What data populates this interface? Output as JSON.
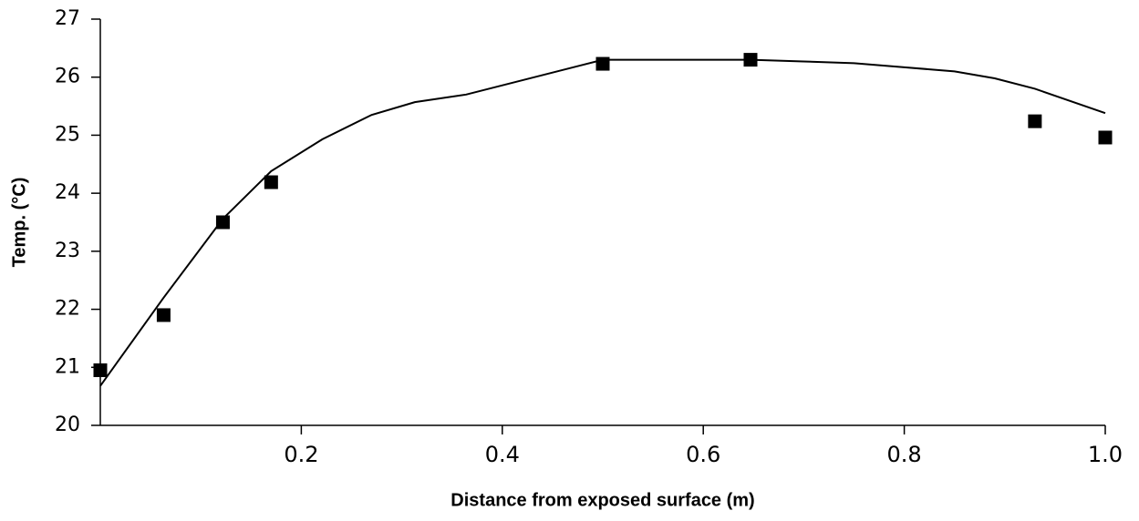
{
  "chart_data": {
    "type": "scatter",
    "x_label": "Distance from exposed surface (m)",
    "y_label": "Temp. (°C)",
    "xlim": [
      0,
      1
    ],
    "ylim": [
      20,
      27
    ],
    "xticks": [
      0.2,
      0.4,
      0.6,
      0.8,
      {
        "value": 1,
        "label": "1.0"
      }
    ],
    "yticks": [
      20,
      21,
      22,
      23,
      24,
      25,
      26,
      27
    ],
    "grid": false,
    "series": [
      {
        "type": "line",
        "color": "#000000",
        "x": [
          0,
          0.063,
          0.122,
          0.17,
          0.221,
          0.27,
          0.313,
          0.364,
          0.5,
          0.647,
          0.7,
          0.75,
          0.8,
          0.85,
          0.89,
          0.93,
          1.0
        ],
        "values": [
          20.68,
          22.2,
          23.56,
          24.38,
          24.93,
          25.35,
          25.57,
          25.7,
          26.3,
          26.3,
          26.27,
          26.24,
          26.17,
          26.1,
          25.98,
          25.8,
          25.38
        ]
      },
      {
        "type": "scatter",
        "color": "#000000",
        "x": [
          0,
          0.063,
          0.122,
          0.17,
          0.5,
          0.647,
          0.93,
          1.0
        ],
        "values": [
          20.95,
          21.9,
          23.5,
          24.19,
          26.23,
          26.3,
          25.24,
          24.96
        ]
      }
    ]
  }
}
